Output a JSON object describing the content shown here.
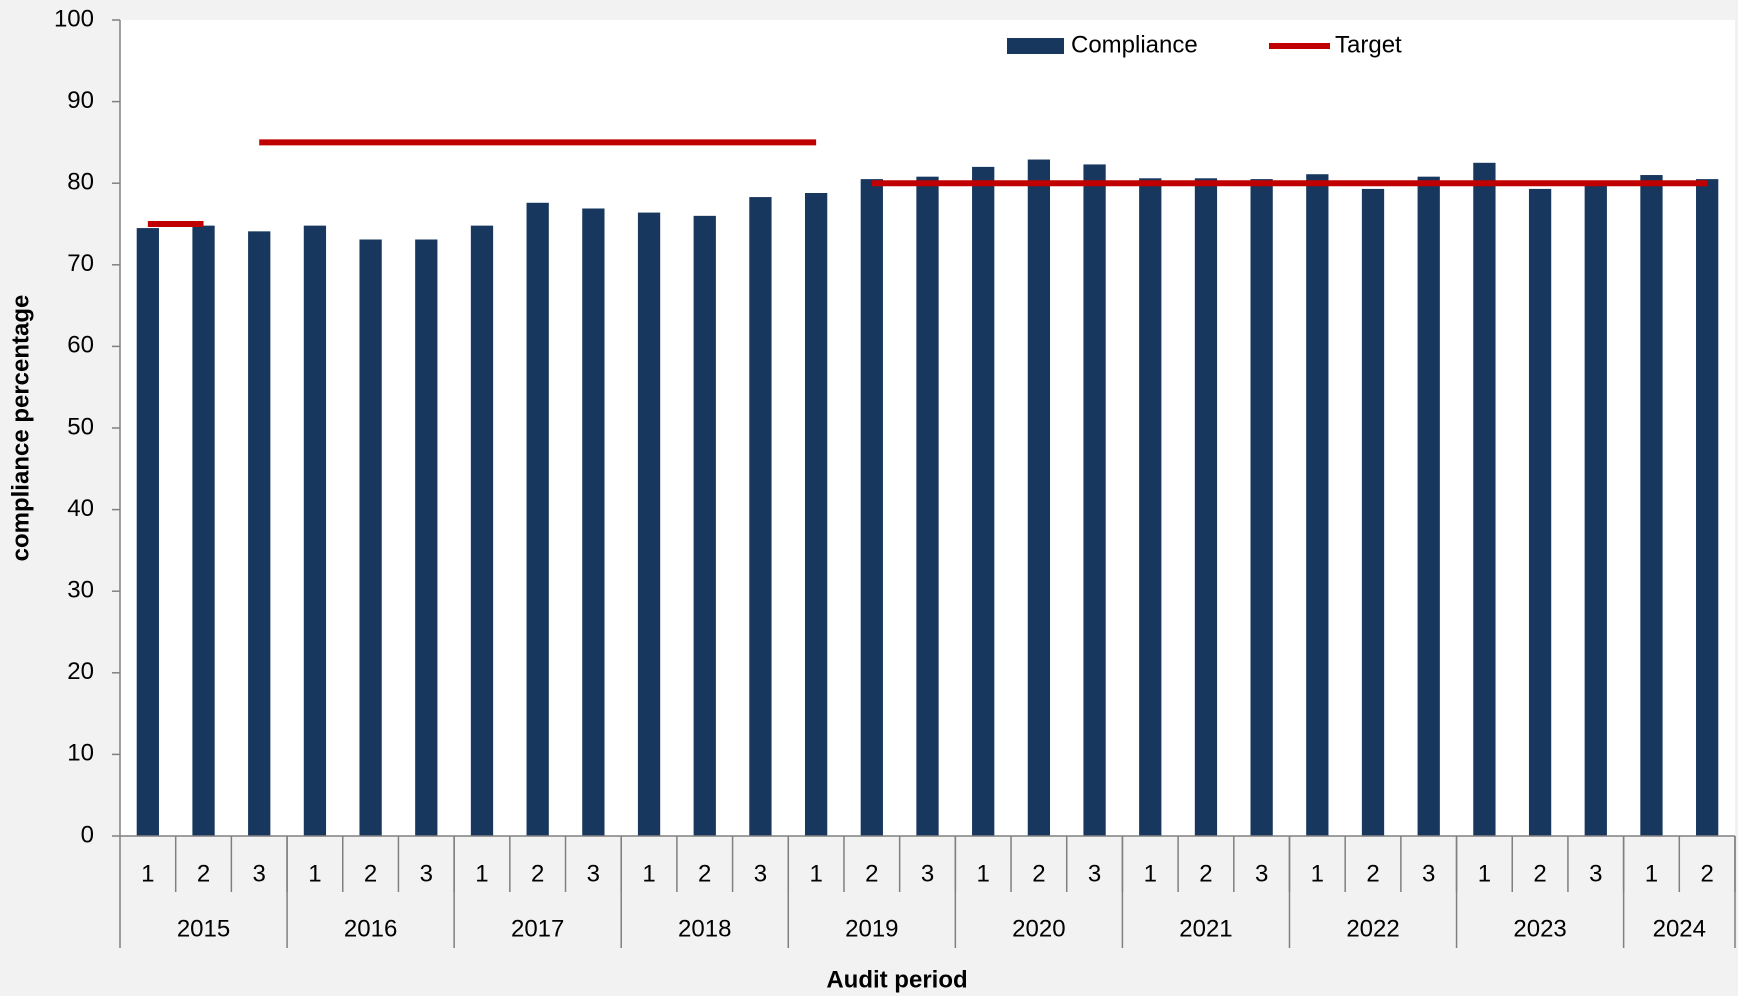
{
  "chart_data": {
    "type": "bar",
    "x_label": "Audit period",
    "y_label": "compliance percentage",
    "categories": [
      "1",
      "2",
      "3",
      "1",
      "2",
      "3",
      "1",
      "2",
      "3",
      "1",
      "2",
      "3",
      "1",
      "2",
      "3",
      "1",
      "2",
      "3",
      "1",
      "2",
      "3",
      "1",
      "2",
      "3",
      "1",
      "2",
      "3",
      "1",
      "2"
    ],
    "groups": [
      {
        "label": "2015",
        "span": 3
      },
      {
        "label": "2016",
        "span": 3
      },
      {
        "label": "2017",
        "span": 3
      },
      {
        "label": "2018",
        "span": 3
      },
      {
        "label": "2019",
        "span": 3
      },
      {
        "label": "2020",
        "span": 3
      },
      {
        "label": "2021",
        "span": 3
      },
      {
        "label": "2022",
        "span": 3
      },
      {
        "label": "2023",
        "span": 3
      },
      {
        "label": "2024",
        "span": 2
      }
    ],
    "series": [
      {
        "name": "Compliance",
        "type": "bar",
        "color": "#17375e",
        "values": [
          74.5,
          74.8,
          74.1,
          74.8,
          73.1,
          73.1,
          74.8,
          77.6,
          76.9,
          76.4,
          76.0,
          78.3,
          78.8,
          80.5,
          80.8,
          82.0,
          82.9,
          82.3,
          80.6,
          80.6,
          80.5,
          81.1,
          79.3,
          80.8,
          82.5,
          79.3,
          80.0,
          81.0,
          80.5
        ]
      },
      {
        "name": "Target",
        "type": "line",
        "color": "#c00000",
        "values": [
          75,
          75,
          85,
          85,
          85,
          85,
          85,
          85,
          85,
          85,
          85,
          85,
          85,
          80,
          80,
          80,
          80,
          80,
          80,
          80,
          80,
          80,
          80,
          80,
          80,
          80,
          80,
          80,
          80
        ]
      }
    ],
    "ylim": [
      0,
      100
    ],
    "yticks": [
      0,
      10,
      20,
      30,
      40,
      50,
      60,
      70,
      80,
      90,
      100
    ],
    "legend": "top"
  }
}
